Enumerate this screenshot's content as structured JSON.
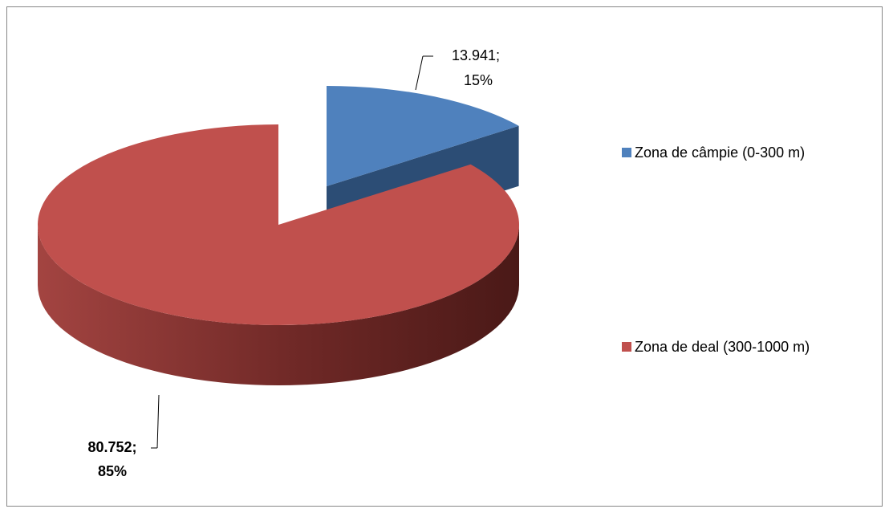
{
  "chart_data": {
    "type": "pie",
    "categories": [
      "Zona de câmpie (0-300 m)",
      "Zona de deal (300-1000 m)"
    ],
    "values": [
      13941,
      80752
    ],
    "value_labels": [
      "13.941;",
      "80.752;"
    ],
    "percent_labels": [
      "15%",
      "85%"
    ],
    "colors": [
      "#4f81bd",
      "#c0504d"
    ],
    "legend": "right"
  }
}
